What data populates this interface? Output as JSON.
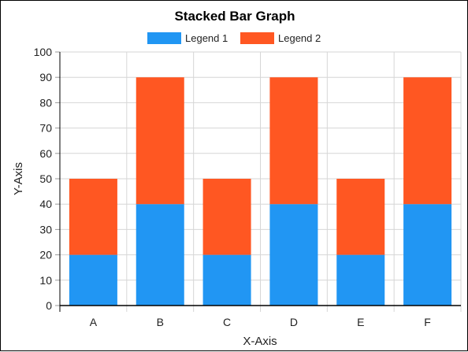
{
  "chart_data": {
    "type": "bar",
    "stacked": true,
    "title": "Stacked Bar Graph",
    "xlabel": "X-Axis",
    "ylabel": "Y-Axis",
    "categories": [
      "A",
      "B",
      "C",
      "D",
      "E",
      "F"
    ],
    "series": [
      {
        "name": "Legend 1",
        "color": "#2196F3",
        "values": [
          20,
          40,
          20,
          40,
          20,
          40
        ]
      },
      {
        "name": "Legend 2",
        "color": "#FF5722",
        "values": [
          30,
          50,
          30,
          50,
          30,
          50
        ]
      }
    ],
    "ylim": [
      0,
      100
    ],
    "yticks": [
      0,
      10,
      20,
      30,
      40,
      50,
      60,
      70,
      80,
      90,
      100
    ],
    "grid": true,
    "legend_position": "top"
  }
}
